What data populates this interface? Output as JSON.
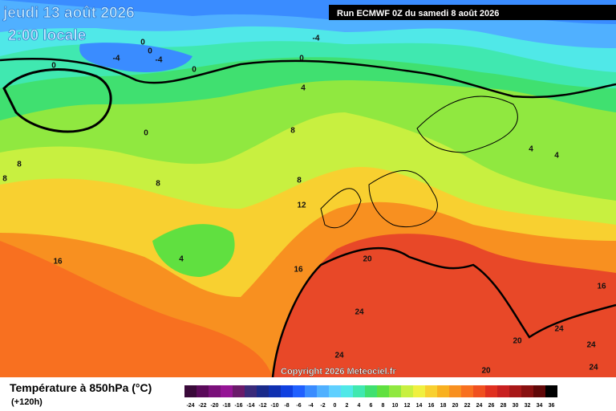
{
  "header": {
    "date": "jeudi 13 août 2026",
    "time": "2:00 locale",
    "run": "Run ECMWF 0Z du samedi 8 août 2026"
  },
  "copyright": "Copyright 2026 Meteociel.fr",
  "contour_labels": [
    "-4",
    "0",
    "0",
    "0",
    "-4",
    "-4",
    "0",
    "0",
    "4",
    "0",
    "8",
    "8",
    "8",
    "8",
    "8",
    "12",
    "4",
    "16",
    "16",
    "20",
    "24",
    "24",
    "20",
    "20",
    "24",
    "24",
    "24",
    "16",
    "4",
    "4"
  ],
  "legend": {
    "title": "Température à 850hPa (°C)",
    "subtitle": "(+120h)",
    "labels": [
      -24,
      -22,
      -20,
      -18,
      -16,
      -14,
      -12,
      -10,
      -8,
      -6,
      -4,
      -2,
      0,
      2,
      4,
      6,
      8,
      10,
      12,
      14,
      16,
      18,
      20,
      22,
      24,
      26,
      28,
      30,
      32,
      34,
      36
    ],
    "colors": [
      "#3a0a3a",
      "#5a0a5a",
      "#7a107a",
      "#951495",
      "#6a1a6a",
      "#3a2a7a",
      "#1a2a8a",
      "#1030b0",
      "#1040e0",
      "#2060ff",
      "#3a8cff",
      "#50b0ff",
      "#60d0ff",
      "#50e8e8",
      "#40e8b0",
      "#40e070",
      "#60e040",
      "#90e840",
      "#c8f040",
      "#f0f040",
      "#f8d030",
      "#f8b020",
      "#f89020",
      "#f87020",
      "#f05020",
      "#e03020",
      "#c82020",
      "#a81818",
      "#881010",
      "#600808",
      "#000000"
    ]
  }
}
